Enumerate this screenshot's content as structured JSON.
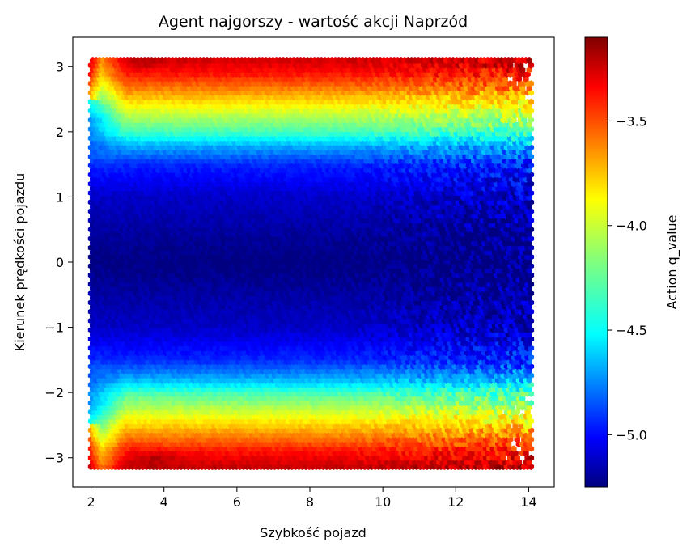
{
  "chart_data": {
    "type": "heatmap",
    "subtype": "hexbin",
    "title": "Agent najgorszy - wartość akcji Naprzód",
    "xlabel": "Szybkość pojazd",
    "ylabel": "Kierunek prędkości pojazdu",
    "colorbar_label": "Action q_value",
    "colormap": "jet",
    "xlim": [
      1.5,
      14.7
    ],
    "ylim": [
      -3.45,
      3.45
    ],
    "x_ticks": [
      2,
      4,
      6,
      8,
      10,
      12,
      14
    ],
    "y_ticks": [
      -3,
      -2,
      -1,
      0,
      1,
      2,
      3
    ],
    "colorbar_range": [
      -5.25,
      -3.1
    ],
    "colorbar_ticks": [
      -5.0,
      -4.5,
      -4.0,
      -3.5
    ],
    "colorbar_tick_labels": [
      "−5.0",
      "−4.5",
      "−4.0",
      "−3.5"
    ],
    "x_tick_labels": [
      "2",
      "4",
      "6",
      "8",
      "10",
      "12",
      "14"
    ],
    "y_tick_labels": [
      "−3",
      "−2",
      "−1",
      "0",
      "1",
      "2",
      "3"
    ],
    "data_extent": {
      "x": [
        2.0,
        14.1
      ],
      "y": [
        -3.14,
        3.14
      ]
    },
    "value_profile_by_direction": [
      {
        "y": 0.0,
        "q_value": -5.25
      },
      {
        "y": 1.0,
        "q_value": -5.1
      },
      {
        "y": 1.5,
        "q_value": -4.9
      },
      {
        "y": 1.8,
        "q_value": -4.6
      },
      {
        "y": 2.0,
        "q_value": -4.3
      },
      {
        "y": 2.3,
        "q_value": -4.0
      },
      {
        "y": 2.6,
        "q_value": -3.7
      },
      {
        "y": 2.9,
        "q_value": -3.4
      },
      {
        "y": 3.14,
        "q_value": -3.25
      }
    ],
    "grid": false
  }
}
